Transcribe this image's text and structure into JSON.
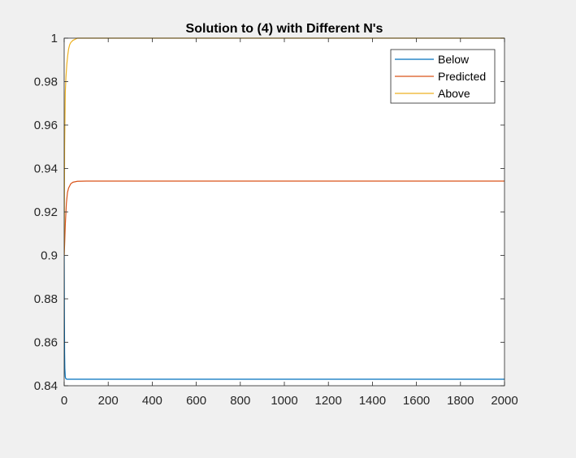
{
  "chart_data": {
    "type": "line",
    "title": "Solution to (4) with Different N's",
    "xlabel": "",
    "ylabel": "",
    "xlim": [
      0,
      2000
    ],
    "ylim": [
      0.84,
      1
    ],
    "xticks": [
      0,
      200,
      400,
      600,
      800,
      1000,
      1200,
      1400,
      1600,
      1800,
      2000
    ],
    "yticks": [
      0.84,
      0.86,
      0.88,
      0.9,
      0.92,
      0.94,
      0.96,
      0.98,
      1
    ],
    "grid": false,
    "legend_position": "top-right",
    "series": [
      {
        "name": "Below",
        "color": "#0072BD",
        "x": [
          0,
          1,
          2,
          3,
          5,
          8,
          12,
          20,
          40,
          100,
          500,
          1000,
          1500,
          2000
        ],
        "y": [
          0.9,
          0.872,
          0.855,
          0.848,
          0.844,
          0.8432,
          0.843,
          0.843,
          0.843,
          0.843,
          0.843,
          0.843,
          0.843,
          0.843
        ]
      },
      {
        "name": "Predicted",
        "color": "#D95319",
        "x": [
          0,
          2,
          5,
          10,
          15,
          20,
          30,
          40,
          60,
          100,
          500,
          1000,
          1500,
          2000
        ],
        "y": [
          0.9,
          0.905,
          0.914,
          0.924,
          0.929,
          0.931,
          0.933,
          0.9337,
          0.9341,
          0.9342,
          0.9342,
          0.9342,
          0.9342,
          0.9342
        ]
      },
      {
        "name": "Above",
        "color": "#EDB120",
        "x": [
          0,
          2,
          5,
          8,
          12,
          16,
          20,
          25,
          30,
          40,
          60,
          100,
          500,
          1000,
          1500,
          2000
        ],
        "y": [
          0.9,
          0.95,
          0.975,
          0.982,
          0.988,
          0.992,
          0.995,
          0.997,
          0.998,
          0.999,
          1.0,
          1.0,
          1.0,
          1.0,
          1.0,
          1.0
        ]
      }
    ]
  }
}
